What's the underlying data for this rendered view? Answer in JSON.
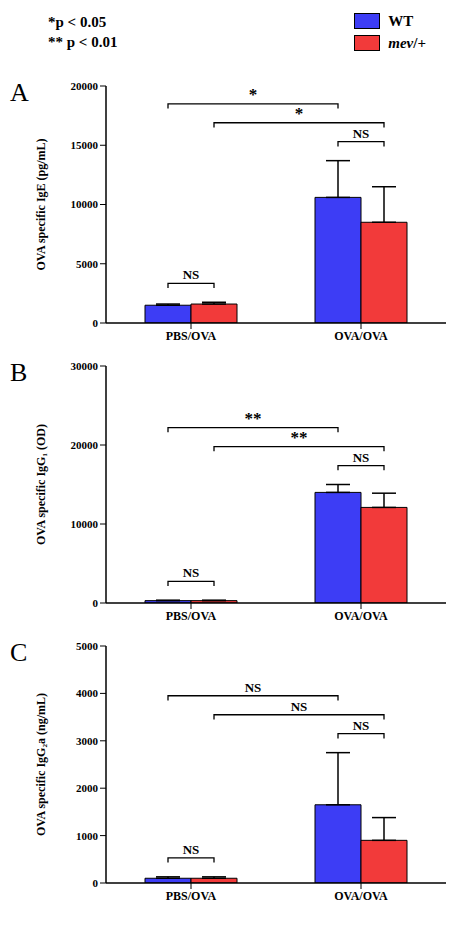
{
  "annotations": [
    "*p < 0.05",
    "** p < 0.01"
  ],
  "chart_data": [
    {
      "type": "bar",
      "panel": "A",
      "y_label": "OVA specific IgE (pg/mL)",
      "categories": [
        "PBS/OVA",
        "OVA/OVA"
      ],
      "series": [
        {
          "name": "WT",
          "color": "#3d3df5",
          "values": [
            1500,
            10600
          ],
          "errors": [
            100,
            3100
          ]
        },
        {
          "name": "mev/+",
          "color": "#f23a3a",
          "values": [
            1600,
            8500
          ],
          "errors": [
            150,
            3000
          ]
        }
      ],
      "ylim": [
        0,
        20000
      ],
      "yticks": [
        0,
        5000,
        10000,
        15000,
        20000
      ],
      "legend": "upper right",
      "comparisons": [
        {
          "from": {
            "category": "PBS/OVA",
            "series": "WT"
          },
          "to": {
            "category": "PBS/OVA",
            "series": "mev/+"
          },
          "label": "NS"
        },
        {
          "from": {
            "category": "OVA/OVA",
            "series": "WT"
          },
          "to": {
            "category": "OVA/OVA",
            "series": "mev/+"
          },
          "label": "NS"
        },
        {
          "from": {
            "category": "PBS/OVA",
            "series": "mev/+"
          },
          "to": {
            "category": "OVA/OVA",
            "series": "mev/+"
          },
          "label": "*"
        },
        {
          "from": {
            "category": "PBS/OVA",
            "series": "WT"
          },
          "to": {
            "category": "OVA/OVA",
            "series": "WT"
          },
          "label": "*"
        }
      ]
    },
    {
      "type": "bar",
      "panel": "B",
      "y_label": "OVA specific IgG₁ (OD)",
      "categories": [
        "PBS/OVA",
        "OVA/OVA"
      ],
      "series": [
        {
          "name": "WT",
          "color": "#3d3df5",
          "values": [
            300,
            14000
          ],
          "errors": [
            50,
            1000
          ]
        },
        {
          "name": "mev/+",
          "color": "#f23a3a",
          "values": [
            300,
            12100
          ],
          "errors": [
            50,
            1800
          ]
        }
      ],
      "ylim": [
        0,
        30000
      ],
      "yticks": [
        0,
        10000,
        20000,
        30000
      ],
      "comparisons": [
        {
          "from": {
            "category": "PBS/OVA",
            "series": "WT"
          },
          "to": {
            "category": "PBS/OVA",
            "series": "mev/+"
          },
          "label": "NS"
        },
        {
          "from": {
            "category": "OVA/OVA",
            "series": "WT"
          },
          "to": {
            "category": "OVA/OVA",
            "series": "mev/+"
          },
          "label": "NS"
        },
        {
          "from": {
            "category": "PBS/OVA",
            "series": "mev/+"
          },
          "to": {
            "category": "OVA/OVA",
            "series": "mev/+"
          },
          "label": "**"
        },
        {
          "from": {
            "category": "PBS/OVA",
            "series": "WT"
          },
          "to": {
            "category": "OVA/OVA",
            "series": "WT"
          },
          "label": "**"
        }
      ]
    },
    {
      "type": "bar",
      "panel": "C",
      "y_label": "OVA specific IgG₂a (ng/mL)",
      "categories": [
        "PBS/OVA",
        "OVA/OVA"
      ],
      "series": [
        {
          "name": "WT",
          "color": "#3d3df5",
          "values": [
            100,
            1650
          ],
          "errors": [
            30,
            1100
          ]
        },
        {
          "name": "mev/+",
          "color": "#f23a3a",
          "values": [
            100,
            900
          ],
          "errors": [
            30,
            480
          ]
        }
      ],
      "ylim": [
        0,
        5000
      ],
      "yticks": [
        0,
        1000,
        2000,
        3000,
        4000,
        5000
      ],
      "comparisons": [
        {
          "from": {
            "category": "PBS/OVA",
            "series": "WT"
          },
          "to": {
            "category": "PBS/OVA",
            "series": "mev/+"
          },
          "label": "NS"
        },
        {
          "from": {
            "category": "OVA/OVA",
            "series": "WT"
          },
          "to": {
            "category": "OVA/OVA",
            "series": "mev/+"
          },
          "label": "NS"
        },
        {
          "from": {
            "category": "PBS/OVA",
            "series": "mev/+"
          },
          "to": {
            "category": "OVA/OVA",
            "series": "mev/+"
          },
          "label": "NS"
        },
        {
          "from": {
            "category": "PBS/OVA",
            "series": "WT"
          },
          "to": {
            "category": "OVA/OVA",
            "series": "WT"
          },
          "label": "NS"
        }
      ]
    }
  ]
}
